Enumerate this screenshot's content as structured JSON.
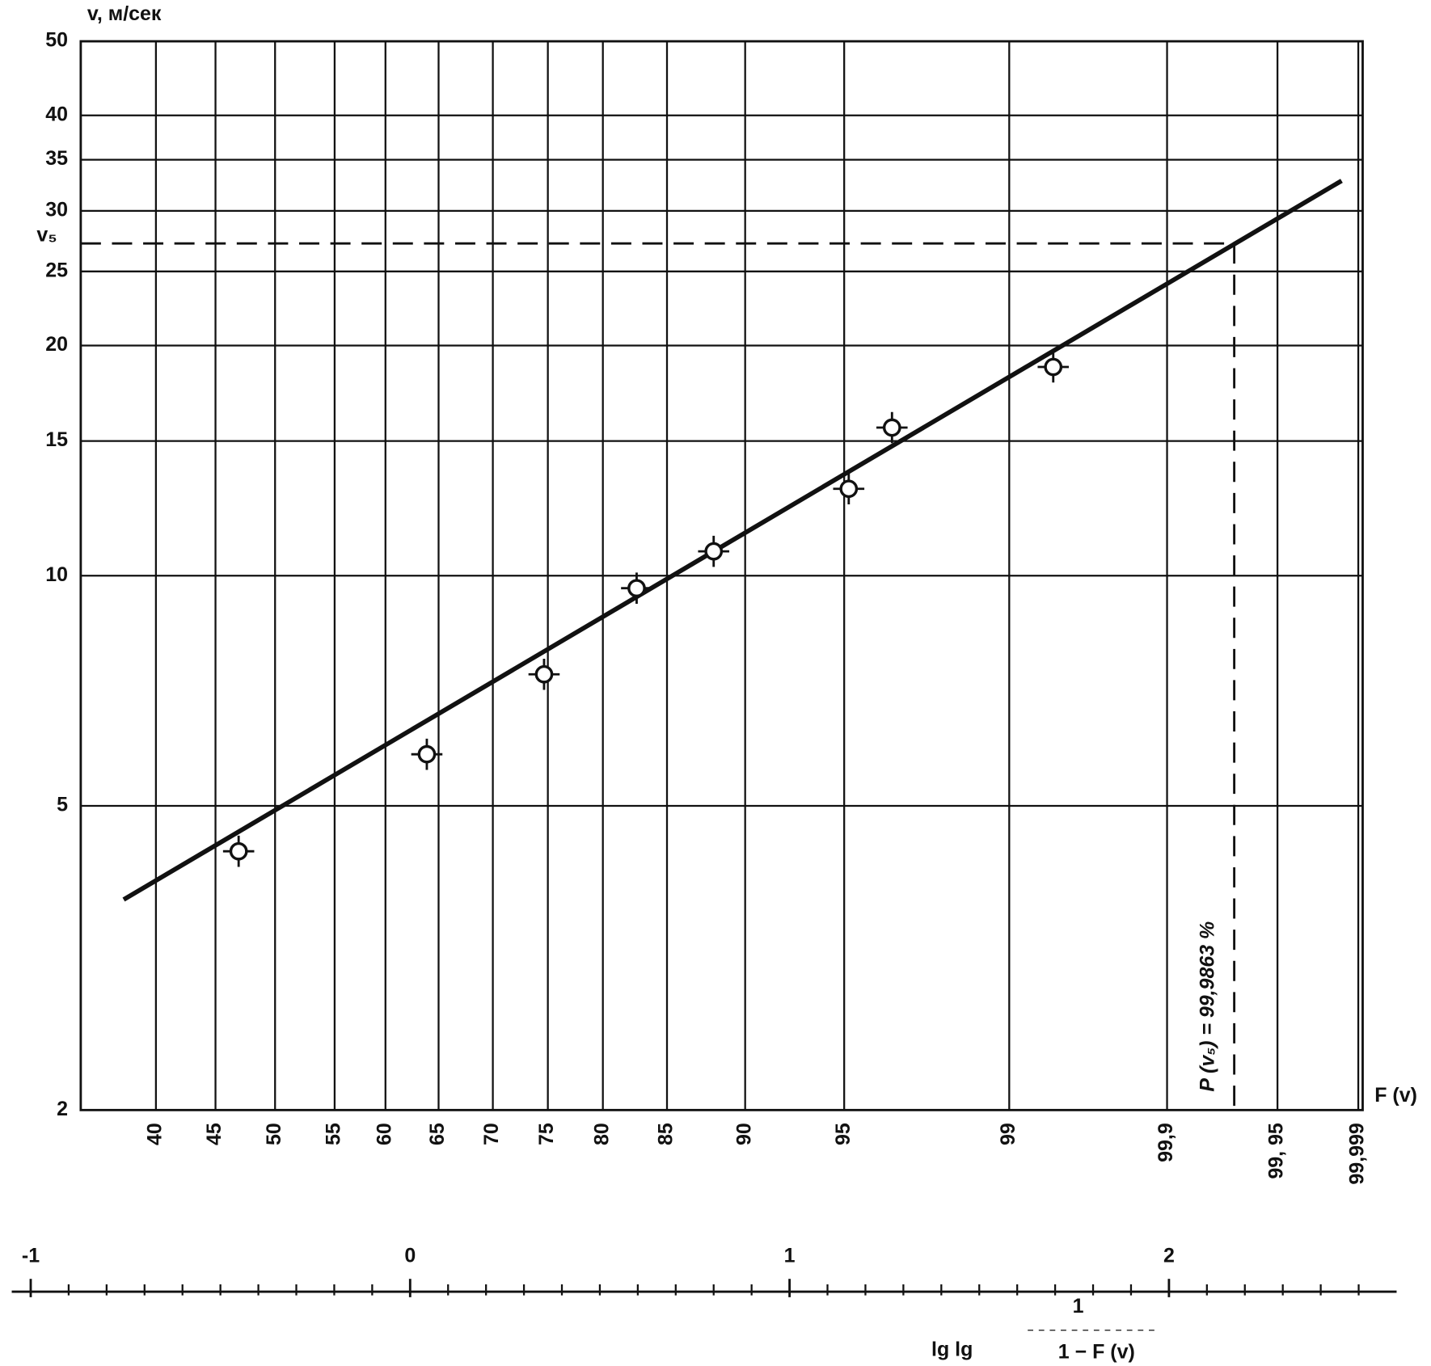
{
  "chart_data": {
    "type": "scatter",
    "y_label": "v, м/сек",
    "x_label": "F (v)",
    "bottom_label": "lg lg",
    "bottom_fraction_num": "1",
    "bottom_fraction_den": "1 − F (v)",
    "y_log": true,
    "ylim": [
      2,
      50
    ],
    "yticks": [
      2,
      5,
      10,
      15,
      20,
      25,
      30,
      35,
      40,
      50
    ],
    "xlim": [
      -1.05,
      2.6
    ],
    "xticks": [
      -1,
      0,
      1,
      2
    ],
    "xminor_ticks": [
      -0.9,
      -0.8,
      -0.7,
      -0.6,
      -0.5,
      -0.4,
      -0.3,
      -0.2,
      -0.1,
      0.1,
      0.2,
      0.3,
      0.4,
      0.5,
      0.6,
      0.7,
      0.8,
      0.9,
      1.1,
      1.2,
      1.3,
      1.4,
      1.5,
      1.6,
      1.7,
      1.8,
      1.9,
      2.1,
      2.2,
      2.3,
      2.4,
      2.5
    ],
    "prob_ticks": [
      {
        "value": -0.67,
        "label": "40"
      },
      {
        "value": -0.513,
        "label": "45"
      },
      {
        "value": -0.356,
        "label": "50"
      },
      {
        "value": -0.199,
        "label": "55"
      },
      {
        "value": -0.065,
        "label": "60"
      },
      {
        "value": 0.075,
        "label": "65"
      },
      {
        "value": 0.218,
        "label": "70"
      },
      {
        "value": 0.363,
        "label": "75"
      },
      {
        "value": 0.508,
        "label": "80"
      },
      {
        "value": 0.677,
        "label": "85"
      },
      {
        "value": 0.883,
        "label": "90"
      },
      {
        "value": 1.144,
        "label": "95"
      },
      {
        "value": 1.579,
        "label": "99"
      },
      {
        "value": 1.995,
        "label": "99,9"
      },
      {
        "value": 2.286,
        "label": "99, 95"
      },
      {
        "value": 2.499,
        "label": "99,999"
      }
    ],
    "points": {
      "x": [
        -0.452,
        0.044,
        0.353,
        0.597,
        0.8,
        1.156,
        1.27,
        1.695
      ],
      "values": [
        4.36,
        5.84,
        7.43,
        9.63,
        10.76,
        12.99,
        15.62,
        18.75
      ]
    },
    "fit_line": {
      "x": [
        -0.755,
        2.455
      ],
      "values": [
        3.77,
        32.85
      ]
    },
    "v5_marker": {
      "label": "v₅",
      "value": 27.2,
      "x": 2.172
    },
    "annotation": "P (v₅) = 99,9863 %"
  }
}
